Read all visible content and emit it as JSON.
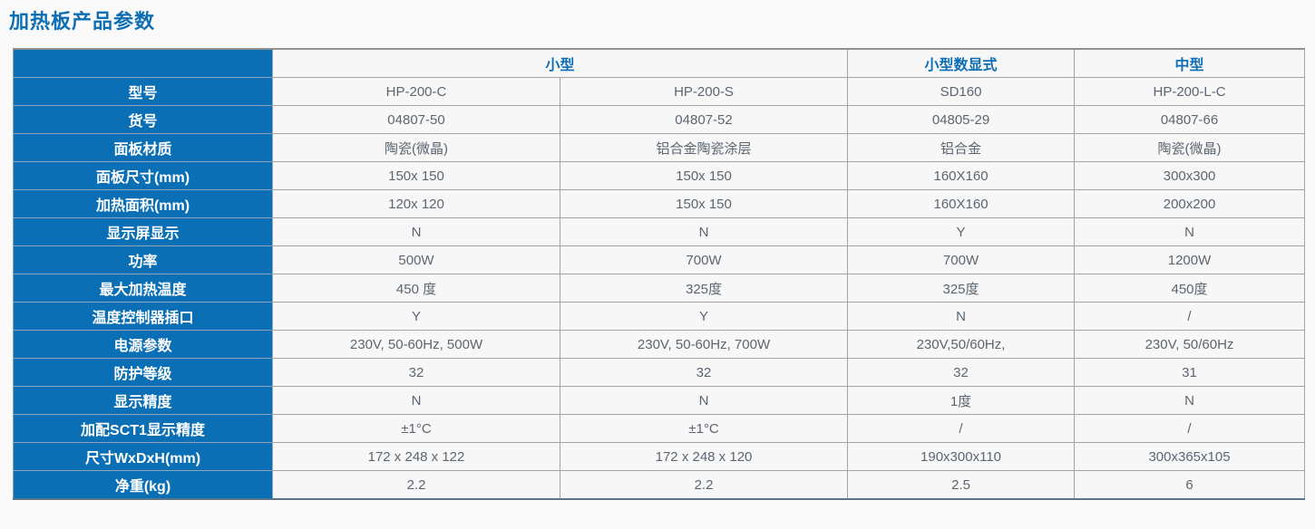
{
  "page": {
    "title": "加热板产品参数",
    "accent_color": "#0b6fb5",
    "cell_background": "#f7f7f8",
    "data_text_color": "#5b6670"
  },
  "table": {
    "corner_label": "",
    "column_groups": [
      {
        "label": "小型",
        "span": "2"
      },
      {
        "label": "小型数显式",
        "span": "1"
      },
      {
        "label": "中型",
        "span": "1"
      }
    ],
    "rows": [
      {
        "header": "型号",
        "cells": [
          "HP-200-C",
          "HP-200-S",
          "SD160",
          "HP-200-L-C"
        ]
      },
      {
        "header": "货号",
        "cells": [
          "04807-50",
          "04807-52",
          "04805-29",
          "04807-66"
        ]
      },
      {
        "header": "面板材质",
        "cells": [
          "陶瓷(微晶)",
          "铝合金陶瓷涂层",
          "铝合金",
          "陶瓷(微晶)"
        ]
      },
      {
        "header": "面板尺寸(mm)",
        "cells": [
          "150x 150",
          "150x 150",
          "160X160",
          "300x300"
        ]
      },
      {
        "header": "加热面积(mm)",
        "cells": [
          "120x 120",
          "150x 150",
          "160X160",
          "200x200"
        ]
      },
      {
        "header": "显示屏显示",
        "cells": [
          "N",
          "N",
          "Y",
          "N"
        ]
      },
      {
        "header": "功率",
        "cells": [
          "500W",
          "700W",
          "700W",
          "1200W"
        ]
      },
      {
        "header": "最大加热温度",
        "cells": [
          "450 度",
          "325度",
          "325度",
          "450度"
        ]
      },
      {
        "header": "温度控制器插口",
        "cells": [
          "Y",
          "Y",
          "N",
          "/"
        ]
      },
      {
        "header": "电源参数",
        "cells": [
          "230V, 50-60Hz, 500W",
          "230V, 50-60Hz, 700W",
          "230V,50/60Hz,",
          "230V, 50/60Hz"
        ]
      },
      {
        "header": "防护等级",
        "cells": [
          "32",
          "32",
          "32",
          "31"
        ]
      },
      {
        "header": "显示精度",
        "cells": [
          "N",
          "N",
          "1度",
          "N"
        ]
      },
      {
        "header": "加配SCT1显示精度",
        "cells": [
          "±1°C",
          "±1°C",
          "/",
          "/"
        ]
      },
      {
        "header": "尺寸WxDxH(mm)",
        "cells": [
          "172 x 248 x 122",
          "172 x 248 x 120",
          "190x300x110",
          "300x365x105"
        ]
      },
      {
        "header": "净重(kg)",
        "cells": [
          "2.2",
          "2.2",
          "2.5",
          "6"
        ]
      }
    ]
  }
}
